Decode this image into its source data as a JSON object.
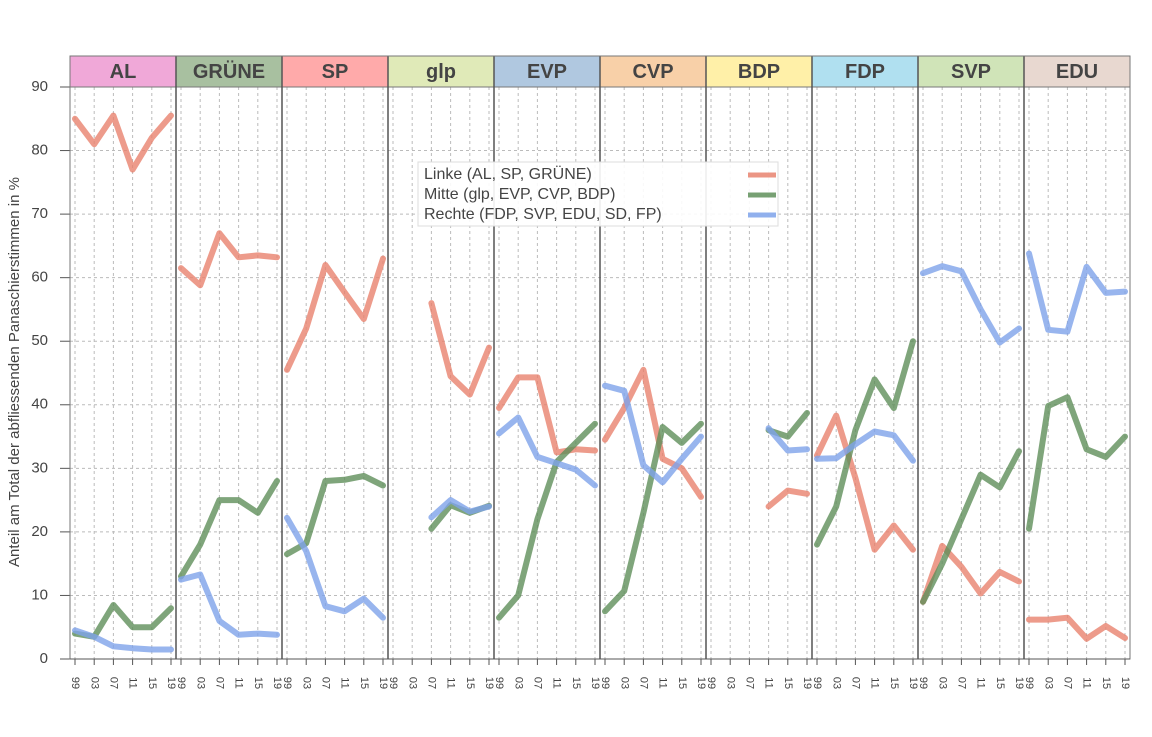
{
  "chart_data": {
    "type": "line",
    "ylabel": "Anteil am Total der abfliessenden Panaschierstimmen in %",
    "categories": [
      "99",
      "03",
      "07",
      "11",
      "15",
      "19"
    ],
    "ylim": [
      0,
      90
    ],
    "yticks": [
      0,
      10,
      20,
      30,
      40,
      50,
      60,
      70,
      80,
      90
    ],
    "grid": true,
    "legend_position": "top-center",
    "series": [
      {
        "name": "Linke (AL, SP, GRÜNE)",
        "color": "#e8826e"
      },
      {
        "name": "Mitte (glp, EVP, CVP, BDP)",
        "color": "#5f8f5a"
      },
      {
        "name": "Rechte (FDP, SVP, EDU, SD, FP)",
        "color": "#7ea2ea"
      }
    ],
    "panels": [
      {
        "title": "AL",
        "color": "#f0a8d8",
        "values": [
          [
            85,
            81,
            85.5,
            77,
            82,
            85.5
          ],
          [
            4,
            3.5,
            8.5,
            5,
            5,
            8
          ],
          [
            4.5,
            3.5,
            2,
            1.7,
            1.5,
            1.5
          ]
        ]
      },
      {
        "title": "GRÜNE",
        "color": "#a8c0a0",
        "values": [
          [
            61.5,
            58.8,
            67,
            63.2,
            63.5,
            63.2
          ],
          [
            13,
            18,
            25,
            25,
            23,
            28
          ],
          [
            12.5,
            13.3,
            6,
            3.8,
            4,
            3.8
          ]
        ]
      },
      {
        "title": "SP",
        "color": "#ffaaaa",
        "values": [
          [
            45.5,
            52,
            62,
            57.7,
            53.5,
            63
          ],
          [
            16.5,
            18.2,
            28,
            28.2,
            28.8,
            27.3
          ],
          [
            22.2,
            17,
            8.3,
            7.5,
            9.5,
            6.5
          ]
        ]
      },
      {
        "title": "glp",
        "color": "#e0eab8",
        "values": [
          [
            null,
            null,
            56,
            44.5,
            41.6,
            49
          ],
          [
            null,
            null,
            20.5,
            24.2,
            23,
            24.1
          ],
          [
            null,
            null,
            22.3,
            25,
            23.2,
            24
          ]
        ]
      },
      {
        "title": "EVP",
        "color": "#b0c8e0",
        "values": [
          [
            39.5,
            44.3,
            44.3,
            32.5,
            33,
            32.8
          ],
          [
            6.5,
            10,
            22,
            31,
            34,
            37
          ],
          [
            35.5,
            38,
            31.8,
            30.8,
            29.8,
            27.3
          ]
        ]
      },
      {
        "title": "CVP",
        "color": "#f8d0a8",
        "values": [
          [
            34.5,
            39.5,
            45.5,
            31.5,
            30,
            25.5
          ],
          [
            7.5,
            10.7,
            23,
            36.5,
            34,
            37
          ],
          [
            43,
            42.2,
            30.5,
            27.8,
            31.5,
            35
          ]
        ]
      },
      {
        "title": "BDP",
        "color": "#fff0a8",
        "values": [
          [
            null,
            null,
            null,
            24,
            26.5,
            26
          ],
          [
            null,
            null,
            null,
            36,
            35,
            38.7
          ],
          [
            null,
            null,
            null,
            36.3,
            32.8,
            33
          ]
        ]
      },
      {
        "title": "FDP",
        "color": "#b0e0f0",
        "values": [
          [
            32,
            38.3,
            28.5,
            17.2,
            21,
            17.2
          ],
          [
            18,
            24,
            36,
            44,
            39.5,
            50
          ],
          [
            31.5,
            31.6,
            33.8,
            35.8,
            35.2,
            31.2
          ]
        ]
      },
      {
        "title": "SVP",
        "color": "#d0e4b8",
        "values": [
          [
            9,
            17.8,
            14.5,
            10.3,
            13.7,
            12.2
          ],
          [
            9,
            15,
            22,
            29,
            27,
            32.7
          ],
          [
            60.7,
            61.8,
            61,
            55,
            49.8,
            52
          ]
        ]
      },
      {
        "title": "EDU",
        "color": "#e8d8d0",
        "values": [
          [
            6.2,
            6.2,
            6.5,
            3.2,
            5.2,
            3.3
          ],
          [
            20.5,
            39.8,
            41.2,
            33,
            31.8,
            35
          ],
          [
            63.8,
            51.8,
            51.5,
            61.7,
            57.6,
            57.8
          ]
        ]
      }
    ]
  }
}
